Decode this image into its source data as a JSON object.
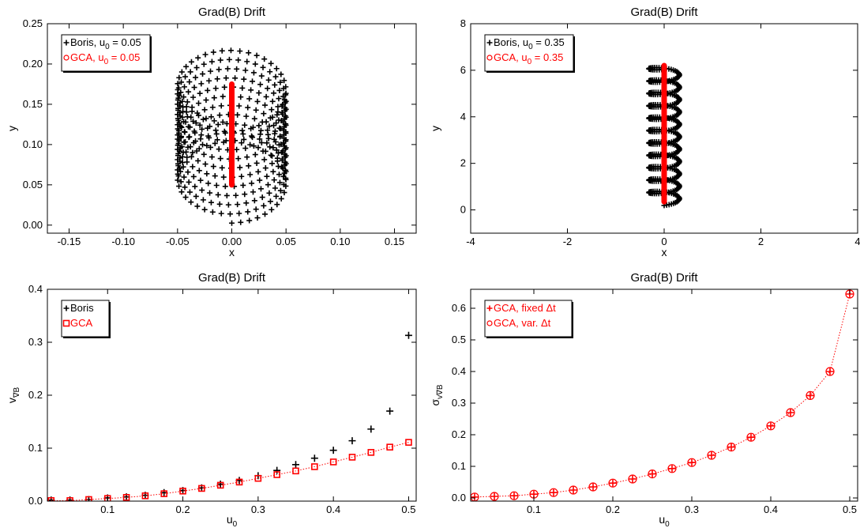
{
  "chart_data": [
    {
      "type": "scatter",
      "title": "Grad(B) Drift",
      "xlabel": "x",
      "ylabel": "y",
      "xlim": [
        -0.17,
        0.17
      ],
      "ylim": [
        -0.01,
        0.25
      ],
      "xticks": [
        "-0.15",
        "-0.10",
        "-0.05",
        "0.00",
        "0.05",
        "0.10",
        "0.15"
      ],
      "xtick_values": [
        -0.15,
        -0.1,
        -0.05,
        0.0,
        0.05,
        0.1,
        0.15
      ],
      "yticks": [
        "0.00",
        "0.05",
        "0.10",
        "0.15",
        "0.20",
        "0.25"
      ],
      "ytick_values": [
        0.0,
        0.05,
        0.1,
        0.15,
        0.2,
        0.25
      ],
      "legend_position": "top-left",
      "series": [
        {
          "name": "Boris, u0 = 0.05",
          "legend_label": "Boris, u",
          "legend_sub": "0",
          "legend_suffix": " = 0.05",
          "color": "#000000",
          "marker": "plus",
          "orbit": {
            "center_x": 0.0,
            "y_start": 0.05,
            "y_end": 0.175,
            "radius": 0.05
          }
        },
        {
          "name": "GCA, u0 = 0.05",
          "legend_label": "GCA,  u",
          "legend_sub": "0",
          "legend_suffix": " = 0.05",
          "color": "#ff0000",
          "marker": "circle",
          "line": {
            "x": 0.0,
            "y_start": 0.05,
            "y_end": 0.175
          }
        }
      ]
    },
    {
      "type": "scatter",
      "title": "Grad(B) Drift",
      "xlabel": "x",
      "ylabel": "y",
      "xlim": [
        -4,
        4
      ],
      "ylim": [
        -1,
        8
      ],
      "xticks": [
        "-4",
        "-2",
        "0",
        "2",
        "4"
      ],
      "xtick_values": [
        -4,
        -2,
        0,
        2,
        4
      ],
      "yticks": [
        "0",
        "2",
        "4",
        "6",
        "8"
      ],
      "ytick_values": [
        0,
        2,
        4,
        6,
        8
      ],
      "legend_position": "top-left",
      "series": [
        {
          "name": "Boris, u0 = 0.35",
          "legend_label": "Boris, u",
          "legend_sub": "0",
          "legend_suffix": " = 0.35",
          "color": "#000000",
          "marker": "plus",
          "orbit": {
            "center_x": 0.0,
            "y_start": 0.35,
            "y_end": 6.2,
            "radius": 0.35
          }
        },
        {
          "name": "GCA, u0 = 0.35",
          "legend_label": "GCA,  u",
          "legend_sub": "0",
          "legend_suffix": " = 0.35",
          "color": "#ff0000",
          "marker": "circle",
          "line": {
            "x": 0.0,
            "y_start": 0.35,
            "y_end": 6.2
          }
        }
      ]
    },
    {
      "type": "scatter",
      "title": "Grad(B) Drift",
      "xlabel": "u",
      "xlabel_sub": "0",
      "ylabel": "v",
      "ylabel_sub": "∇B",
      "xlim": [
        0.02,
        0.51
      ],
      "ylim": [
        0,
        0.4
      ],
      "xticks": [
        "0.1",
        "0.2",
        "0.3",
        "0.4",
        "0.5"
      ],
      "xtick_values": [
        0.1,
        0.2,
        0.3,
        0.4,
        0.5
      ],
      "yticks": [
        "0.0",
        "0.1",
        "0.2",
        "0.3",
        "0.4"
      ],
      "ytick_values": [
        0.0,
        0.1,
        0.2,
        0.3,
        0.4
      ],
      "legend_position": "top-left",
      "x": [
        0.025,
        0.05,
        0.075,
        0.1,
        0.125,
        0.15,
        0.175,
        0.2,
        0.225,
        0.25,
        0.275,
        0.3,
        0.325,
        0.35,
        0.375,
        0.4,
        0.425,
        0.45,
        0.475,
        0.5
      ],
      "series": [
        {
          "name": "Boris",
          "color": "#000000",
          "marker": "plus",
          "values": [
            0.002,
            0.002,
            0.003,
            0.006,
            0.008,
            0.011,
            0.016,
            0.02,
            0.025,
            0.032,
            0.039,
            0.048,
            0.058,
            0.069,
            0.081,
            0.096,
            0.114,
            0.136,
            0.17,
            0.313
          ]
        },
        {
          "name": "GCA",
          "color": "#ff0000",
          "marker": "square",
          "dotted_line": true,
          "values": [
            0.001,
            0.001,
            0.003,
            0.005,
            0.007,
            0.01,
            0.014,
            0.019,
            0.024,
            0.03,
            0.036,
            0.043,
            0.05,
            0.057,
            0.065,
            0.074,
            0.083,
            0.092,
            0.102,
            0.111
          ]
        }
      ]
    },
    {
      "type": "scatter",
      "title": "Grad(B) Drift",
      "xlabel": "u",
      "xlabel_sub": "0",
      "ylabel": "σ",
      "ylabel_sub": "v∇B",
      "xlim": [
        0.02,
        0.51
      ],
      "ylim": [
        -0.01,
        0.66
      ],
      "xticks": [
        "0.1",
        "0.2",
        "0.3",
        "0.4",
        "0.5"
      ],
      "xtick_values": [
        0.1,
        0.2,
        0.3,
        0.4,
        0.5
      ],
      "yticks": [
        "0.0",
        "0.1",
        "0.2",
        "0.3",
        "0.4",
        "0.5",
        "0.6"
      ],
      "ytick_values": [
        0.0,
        0.1,
        0.2,
        0.3,
        0.4,
        0.5,
        0.6
      ],
      "legend_position": "top-left",
      "x": [
        0.025,
        0.05,
        0.075,
        0.1,
        0.125,
        0.15,
        0.175,
        0.2,
        0.225,
        0.25,
        0.275,
        0.3,
        0.325,
        0.35,
        0.375,
        0.4,
        0.425,
        0.45,
        0.475,
        0.5
      ],
      "series": [
        {
          "name": "GCA, fixed Δt",
          "color": "#ff0000",
          "marker": "plus",
          "dotted_line": true,
          "values": [
            0.003,
            0.005,
            0.007,
            0.012,
            0.017,
            0.025,
            0.035,
            0.047,
            0.06,
            0.076,
            0.093,
            0.112,
            0.135,
            0.161,
            0.192,
            0.228,
            0.27,
            0.324,
            0.4,
            0.645
          ]
        },
        {
          "name": "GCA, var. Δt",
          "color": "#ff0000",
          "marker": "circle",
          "values": [
            0.003,
            0.005,
            0.007,
            0.012,
            0.017,
            0.025,
            0.035,
            0.047,
            0.06,
            0.076,
            0.093,
            0.112,
            0.135,
            0.161,
            0.192,
            0.228,
            0.27,
            0.324,
            0.4,
            0.645
          ]
        }
      ]
    }
  ]
}
